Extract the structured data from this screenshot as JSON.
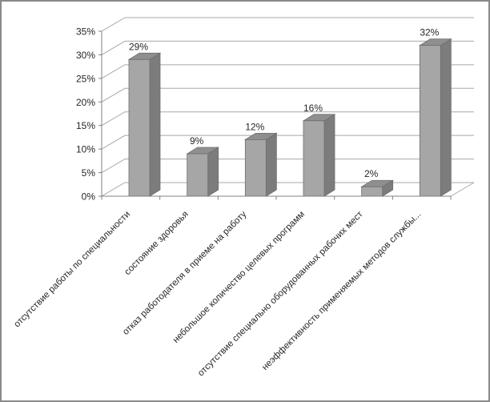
{
  "frame": {
    "background": "#ffffff",
    "border_color": "#8a8a8a"
  },
  "chart_data": {
    "type": "bar",
    "style": "3d-column",
    "title": "",
    "xlabel": "",
    "ylabel": "",
    "categories": [
      "отсутствие работы по специальности",
      "состояние здоровья",
      "отказ работодателя в приеме на работу",
      "небольшое количество целевых программ",
      "отсутствие специально оборудованных рабочих мест",
      "неэффективность применяемых методов службы..."
    ],
    "values": [
      29,
      9,
      12,
      16,
      2,
      32
    ],
    "data_labels": [
      "29%",
      "9%",
      "12%",
      "16%",
      "2%",
      "32%"
    ],
    "ylim": [
      0,
      35
    ],
    "ytick_step": 5,
    "ytick_labels": [
      "0%",
      "5%",
      "10%",
      "15%",
      "20%",
      "25%",
      "30%",
      "35%"
    ],
    "grid": true,
    "legend": "none",
    "colors": {
      "bar_front": "#a6a6a6",
      "bar_top": "#8f8f8f",
      "bar_side": "#7c7c7c",
      "bar_outline": "#6e6e6e",
      "gridline": "#a8a8a8",
      "axis": "#808080",
      "text": "#262626"
    }
  }
}
